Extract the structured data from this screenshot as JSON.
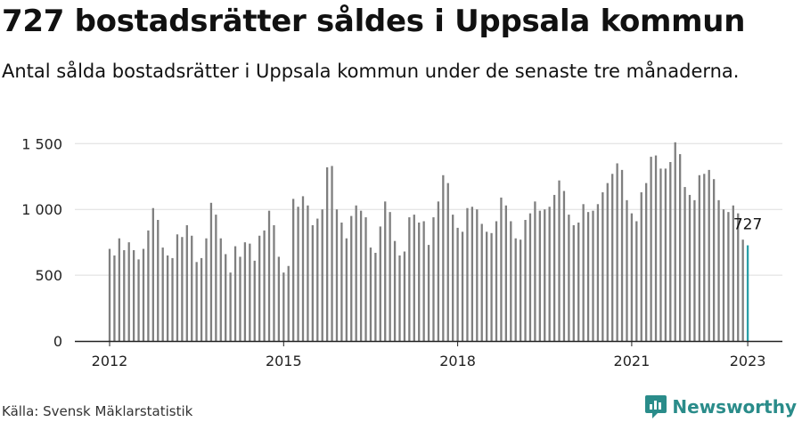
{
  "header": {
    "title": "727 bostadsrätter såldes i Uppsala kommun",
    "subtitle": "Antal sålda bostadsrätter i Uppsala kommun under de senaste tre månaderna."
  },
  "footer": {
    "source": "Källa: Svensk Mäklarstatistik",
    "brand": "Newsworthy"
  },
  "colors": {
    "bar": "#7f7f7f",
    "highlight": "#2b9fa8",
    "grid": "#dddddd",
    "brand": "#2a8c8a"
  },
  "chart_data": {
    "type": "bar",
    "x_start": "2012-01",
    "x_unit": "month",
    "ylim": [
      0,
      1550
    ],
    "yticks": [
      {
        "value": 0,
        "label": "0"
      },
      {
        "value": 500,
        "label": "500"
      },
      {
        "value": 1000,
        "label": "1 000"
      },
      {
        "value": 1500,
        "label": "1 500"
      }
    ],
    "xticks": [
      {
        "index": 0,
        "label": "2012"
      },
      {
        "index": 36,
        "label": "2015"
      },
      {
        "index": 72,
        "label": "2018"
      },
      {
        "index": 108,
        "label": "2021"
      },
      {
        "index": 132,
        "label": "2023"
      }
    ],
    "values": [
      700,
      650,
      780,
      690,
      750,
      690,
      620,
      700,
      840,
      1010,
      920,
      710,
      650,
      630,
      810,
      790,
      880,
      800,
      600,
      630,
      780,
      1050,
      960,
      780,
      660,
      520,
      720,
      640,
      750,
      740,
      610,
      800,
      840,
      990,
      880,
      640,
      520,
      570,
      1080,
      1020,
      1100,
      1030,
      880,
      930,
      1000,
      1320,
      1330,
      1000,
      900,
      780,
      950,
      1030,
      990,
      940,
      710,
      670,
      870,
      1060,
      980,
      760,
      650,
      680,
      940,
      960,
      900,
      910,
      730,
      940,
      1060,
      1260,
      1200,
      960,
      860,
      830,
      1010,
      1020,
      1000,
      890,
      830,
      820,
      910,
      1090,
      1030,
      910,
      780,
      770,
      920,
      970,
      1060,
      990,
      1000,
      1020,
      1110,
      1220,
      1140,
      960,
      880,
      900,
      1040,
      980,
      990,
      1040,
      1130,
      1200,
      1270,
      1350,
      1300,
      1070,
      970,
      910,
      1130,
      1200,
      1400,
      1410,
      1310,
      1310,
      1360,
      1510,
      1420,
      1170,
      1110,
      1070,
      1260,
      1270,
      1300,
      1230,
      1070,
      1000,
      980,
      1030,
      970,
      770,
      727
    ],
    "highlight_index": 132,
    "annotation": "727"
  }
}
